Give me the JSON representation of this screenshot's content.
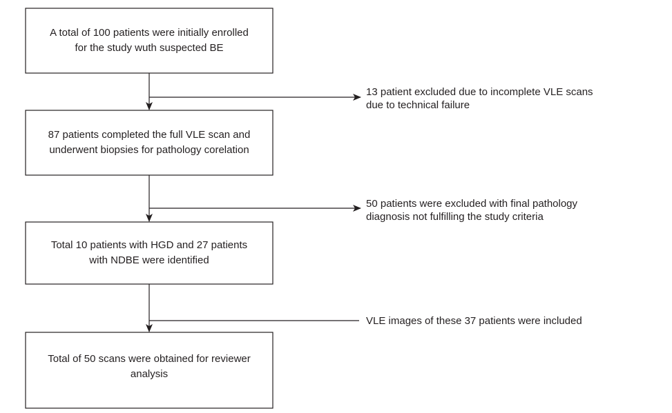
{
  "nodes": [
    {
      "lines": [
        "A total of 100 patients were initially enrolled",
        "for the study wuth suspected BE"
      ]
    },
    {
      "lines": [
        "87 patients completed the full VLE scan and",
        "underwent biopsies for pathology corelation"
      ]
    },
    {
      "lines": [
        "Total 10 patients with HGD and 27 patients",
        "with NDBE were identified"
      ]
    },
    {
      "lines": [
        "Total of 50 scans were obtained for reviewer",
        "analysis"
      ]
    }
  ],
  "notes": [
    {
      "lines": [
        "13 patient excluded due to incomplete VLE scans",
        "due to technical failure"
      ]
    },
    {
      "lines": [
        "50 patients were excluded with final pathology",
        "diagnosis not fulfilling the study criteria"
      ]
    },
    {
      "lines": [
        "VLE images of these 37 patients were included"
      ]
    }
  ]
}
